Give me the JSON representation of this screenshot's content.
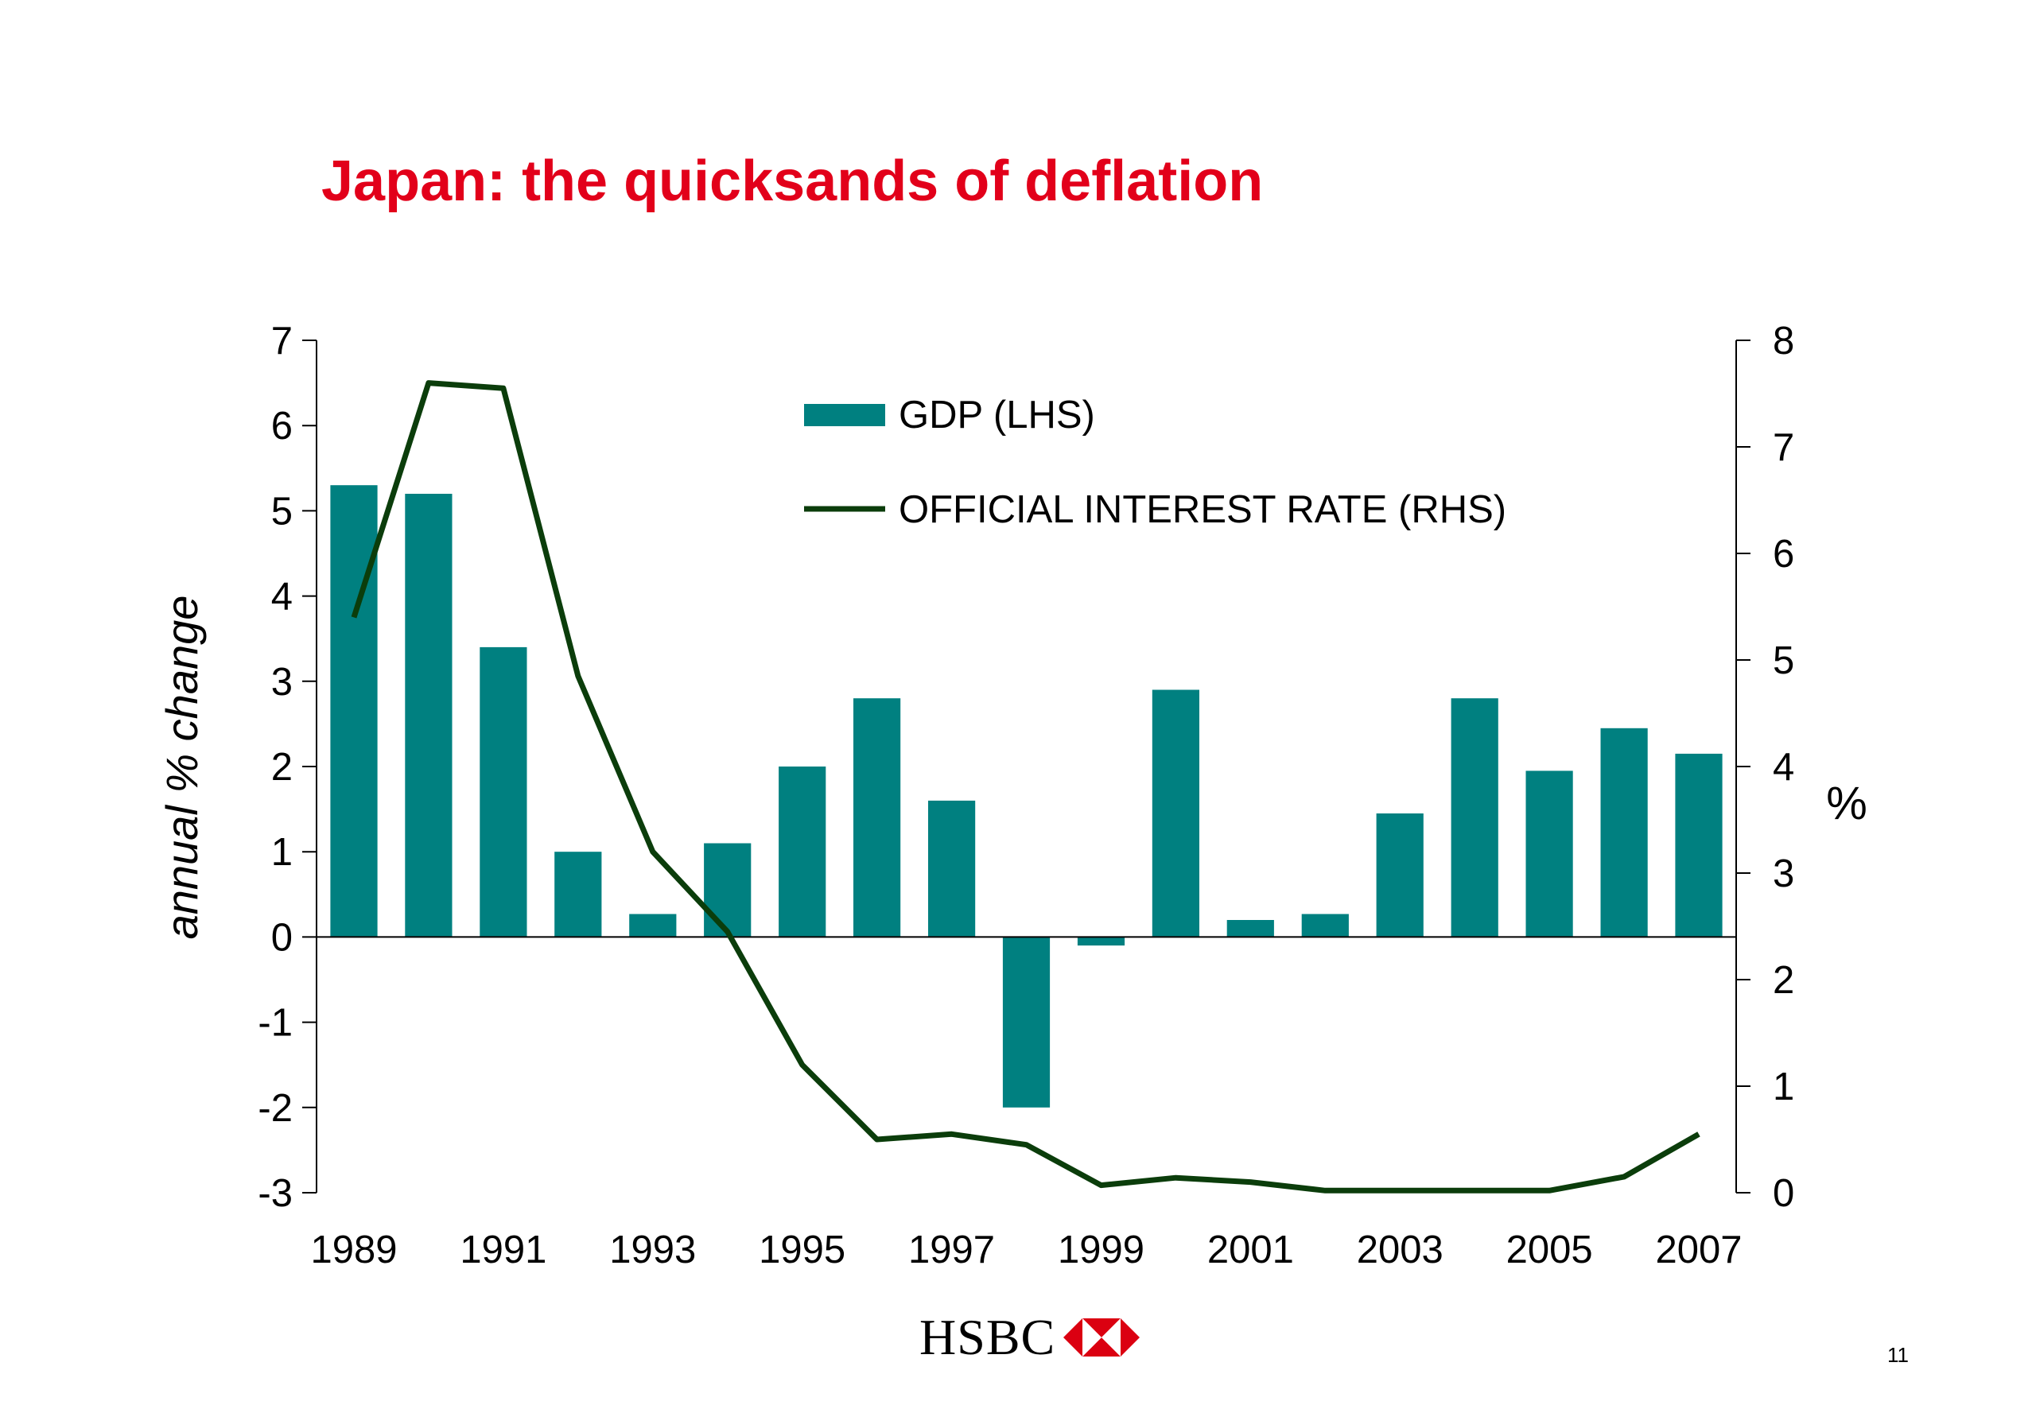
{
  "slide": {
    "title": "Japan: the quicksands of deflation",
    "logo_text": "HSBC",
    "page_number": "11"
  },
  "colors": {
    "title": "#e2001a",
    "bar": "#008080",
    "line": "#0b3d0b",
    "logo_red": "#db0011"
  },
  "chart_data": {
    "type": "bar",
    "title": "",
    "categories": [
      "1989",
      "1990",
      "1991",
      "1992",
      "1993",
      "1994",
      "1995",
      "1996",
      "1997",
      "1998",
      "1999",
      "2000",
      "2001",
      "2002",
      "2003",
      "2004",
      "2005",
      "2006",
      "2007"
    ],
    "x_tick_labels": [
      "1989",
      "1991",
      "1993",
      "1995",
      "1997",
      "1999",
      "2001",
      "2003",
      "2005",
      "2007"
    ],
    "series": [
      {
        "name": "GDP (LHS)",
        "type": "bar",
        "axis": "left",
        "values": [
          5.3,
          5.2,
          3.4,
          1.0,
          0.27,
          1.1,
          2.0,
          2.8,
          1.6,
          -2.0,
          -0.1,
          2.9,
          0.2,
          0.27,
          1.45,
          2.8,
          1.95,
          2.45,
          2.15
        ]
      },
      {
        "name": "OFFICIAL INTEREST RATE (RHS)",
        "type": "line",
        "axis": "right",
        "values": [
          5.4,
          7.6,
          7.55,
          4.85,
          3.2,
          2.45,
          1.2,
          0.5,
          0.55,
          0.45,
          0.07,
          0.14,
          0.1,
          0.02,
          0.02,
          0.02,
          0.02,
          0.15,
          0.55
        ]
      }
    ],
    "ylabel": "annual % change",
    "ylabel_right": "%",
    "ylim": [
      -3,
      7
    ],
    "ylim_right": [
      0,
      8
    ],
    "y_ticks": [
      "7",
      "6",
      "5",
      "4",
      "3",
      "2",
      "1",
      "0",
      "-1",
      "-2",
      "-3"
    ],
    "y_ticks_right": [
      "8",
      "7",
      "6",
      "5",
      "4",
      "3",
      "2",
      "1",
      "0"
    ],
    "legend_placement": "top-center",
    "grid": false
  }
}
